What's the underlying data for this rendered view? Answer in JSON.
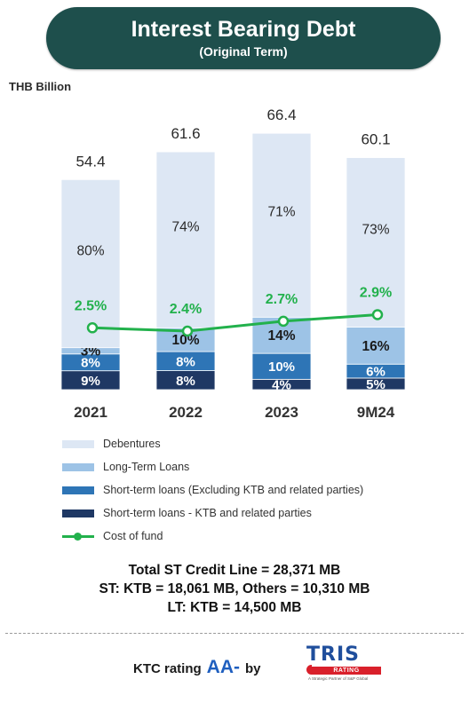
{
  "header": {
    "title": "Interest Bearing Debt",
    "subtitle": "(Original Term)"
  },
  "chart_data": {
    "type": "bar",
    "stacked": true,
    "unit_label": "THB Billion",
    "categories": [
      "2021",
      "2022",
      "2023",
      "9M24"
    ],
    "totals": [
      "54.4",
      "61.6",
      "66.4",
      "60.1"
    ],
    "total_values": [
      54.4,
      61.6,
      66.4,
      60.1
    ],
    "series": [
      {
        "name": "Short-term loans -  KTB and related parties",
        "shares": [
          9,
          8,
          4,
          5
        ],
        "labels": [
          "9%",
          "8%",
          "4%",
          "5%"
        ],
        "color": "#1f3864"
      },
      {
        "name": "Short-term loans (Excluding KTB and  related parties)",
        "shares": [
          8,
          8,
          10,
          6
        ],
        "labels": [
          "8%",
          "8%",
          "10%",
          "6%"
        ],
        "color": "#2e75b6"
      },
      {
        "name": "Long-Term Loans",
        "shares": [
          3,
          10,
          14,
          16
        ],
        "labels": [
          "3%",
          "10%",
          "14%",
          "16%"
        ],
        "color": "#9dc3e6"
      },
      {
        "name": "Debentures",
        "shares": [
          80,
          74,
          71,
          73
        ],
        "labels": [
          "80%",
          "74%",
          "71%",
          "73%"
        ],
        "color": "#dde7f4"
      }
    ],
    "line": {
      "name": "Cost of fund",
      "values": [
        2.5,
        2.4,
        2.7,
        2.9
      ],
      "labels": [
        "2.5%",
        "2.4%",
        "2.7%",
        "2.9%"
      ],
      "color": "#22b14c"
    },
    "legend_position": "bottom",
    "grid": false
  },
  "summary": {
    "line1": "Total ST Credit Line =  28,371 MB",
    "line2": "ST: KTB = 18,061 MB, Others = 10,310 MB",
    "line3": "LT: KTB = 14,500 MB"
  },
  "rating": {
    "prefix": "KTC rating",
    "grade": "AA-",
    "suffix": "by"
  },
  "logo": {
    "name": "TRIS",
    "bar_text": "RATING",
    "tagline": "A Strategic Partner of S&P Global"
  }
}
